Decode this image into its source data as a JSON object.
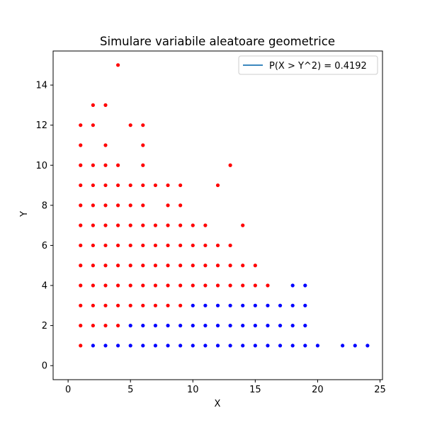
{
  "chart_data": {
    "type": "scatter",
    "title": "Simulare variabile aleatoare geometrice",
    "xlabel": "X",
    "ylabel": "Y",
    "xlim": [
      -1.2,
      25.2
    ],
    "ylim": [
      -0.7,
      15.7
    ],
    "xticks": [
      0,
      5,
      10,
      15,
      20,
      25
    ],
    "yticks": [
      0,
      2,
      4,
      6,
      8,
      10,
      12,
      14
    ],
    "grid": false,
    "legend": {
      "placement": "upper right",
      "entries": [
        {
          "label": "P(X > Y^2) = 0.4192",
          "color": "#1f77b4",
          "marker": "line"
        }
      ]
    },
    "series": [
      {
        "color": "#ff0000",
        "condition": "X <= Y^2",
        "points": [
          [
            1,
            1
          ],
          [
            1,
            2
          ],
          [
            1,
            3
          ],
          [
            1,
            4
          ],
          [
            1,
            5
          ],
          [
            1,
            6
          ],
          [
            1,
            7
          ],
          [
            1,
            8
          ],
          [
            1,
            9
          ],
          [
            1,
            10
          ],
          [
            1,
            11
          ],
          [
            1,
            12
          ],
          [
            2,
            2
          ],
          [
            2,
            3
          ],
          [
            2,
            4
          ],
          [
            2,
            5
          ],
          [
            2,
            6
          ],
          [
            2,
            7
          ],
          [
            2,
            8
          ],
          [
            2,
            9
          ],
          [
            2,
            10
          ],
          [
            2,
            12
          ],
          [
            2,
            13
          ],
          [
            3,
            2
          ],
          [
            3,
            3
          ],
          [
            3,
            4
          ],
          [
            3,
            5
          ],
          [
            3,
            6
          ],
          [
            3,
            7
          ],
          [
            3,
            8
          ],
          [
            3,
            9
          ],
          [
            3,
            10
          ],
          [
            3,
            11
          ],
          [
            3,
            13
          ],
          [
            4,
            2
          ],
          [
            4,
            3
          ],
          [
            4,
            4
          ],
          [
            4,
            5
          ],
          [
            4,
            6
          ],
          [
            4,
            7
          ],
          [
            4,
            8
          ],
          [
            4,
            9
          ],
          [
            4,
            10
          ],
          [
            4,
            15
          ],
          [
            5,
            3
          ],
          [
            5,
            4
          ],
          [
            5,
            5
          ],
          [
            5,
            6
          ],
          [
            5,
            7
          ],
          [
            5,
            8
          ],
          [
            5,
            9
          ],
          [
            5,
            12
          ],
          [
            6,
            3
          ],
          [
            6,
            4
          ],
          [
            6,
            5
          ],
          [
            6,
            6
          ],
          [
            6,
            7
          ],
          [
            6,
            8
          ],
          [
            6,
            9
          ],
          [
            6,
            10
          ],
          [
            6,
            11
          ],
          [
            6,
            12
          ],
          [
            7,
            3
          ],
          [
            7,
            4
          ],
          [
            7,
            5
          ],
          [
            7,
            6
          ],
          [
            7,
            7
          ],
          [
            7,
            9
          ],
          [
            8,
            3
          ],
          [
            8,
            4
          ],
          [
            8,
            5
          ],
          [
            8,
            6
          ],
          [
            8,
            7
          ],
          [
            8,
            8
          ],
          [
            8,
            9
          ],
          [
            9,
            3
          ],
          [
            9,
            4
          ],
          [
            9,
            5
          ],
          [
            9,
            6
          ],
          [
            9,
            7
          ],
          [
            9,
            8
          ],
          [
            9,
            9
          ],
          [
            10,
            4
          ],
          [
            10,
            5
          ],
          [
            10,
            6
          ],
          [
            10,
            7
          ],
          [
            11,
            4
          ],
          [
            11,
            5
          ],
          [
            11,
            6
          ],
          [
            11,
            7
          ],
          [
            12,
            4
          ],
          [
            12,
            5
          ],
          [
            12,
            6
          ],
          [
            12,
            9
          ],
          [
            13,
            4
          ],
          [
            13,
            5
          ],
          [
            13,
            6
          ],
          [
            13,
            10
          ],
          [
            14,
            4
          ],
          [
            14,
            5
          ],
          [
            14,
            7
          ],
          [
            15,
            4
          ],
          [
            15,
            5
          ],
          [
            16,
            4
          ]
        ]
      },
      {
        "color": "#0000ff",
        "condition": "X > Y^2",
        "points": [
          [
            2,
            1
          ],
          [
            3,
            1
          ],
          [
            4,
            1
          ],
          [
            5,
            1
          ],
          [
            6,
            1
          ],
          [
            7,
            1
          ],
          [
            8,
            1
          ],
          [
            9,
            1
          ],
          [
            10,
            1
          ],
          [
            11,
            1
          ],
          [
            12,
            1
          ],
          [
            13,
            1
          ],
          [
            14,
            1
          ],
          [
            15,
            1
          ],
          [
            16,
            1
          ],
          [
            17,
            1
          ],
          [
            18,
            1
          ],
          [
            19,
            1
          ],
          [
            20,
            1
          ],
          [
            22,
            1
          ],
          [
            23,
            1
          ],
          [
            24,
            1
          ],
          [
            5,
            2
          ],
          [
            6,
            2
          ],
          [
            7,
            2
          ],
          [
            8,
            2
          ],
          [
            9,
            2
          ],
          [
            10,
            2
          ],
          [
            11,
            2
          ],
          [
            12,
            2
          ],
          [
            13,
            2
          ],
          [
            14,
            2
          ],
          [
            15,
            2
          ],
          [
            16,
            2
          ],
          [
            17,
            2
          ],
          [
            18,
            2
          ],
          [
            19,
            2
          ],
          [
            10,
            3
          ],
          [
            11,
            3
          ],
          [
            12,
            3
          ],
          [
            13,
            3
          ],
          [
            14,
            3
          ],
          [
            15,
            3
          ],
          [
            16,
            3
          ],
          [
            17,
            3
          ],
          [
            18,
            3
          ],
          [
            19,
            3
          ],
          [
            18,
            4
          ],
          [
            19,
            4
          ]
        ]
      }
    ]
  }
}
